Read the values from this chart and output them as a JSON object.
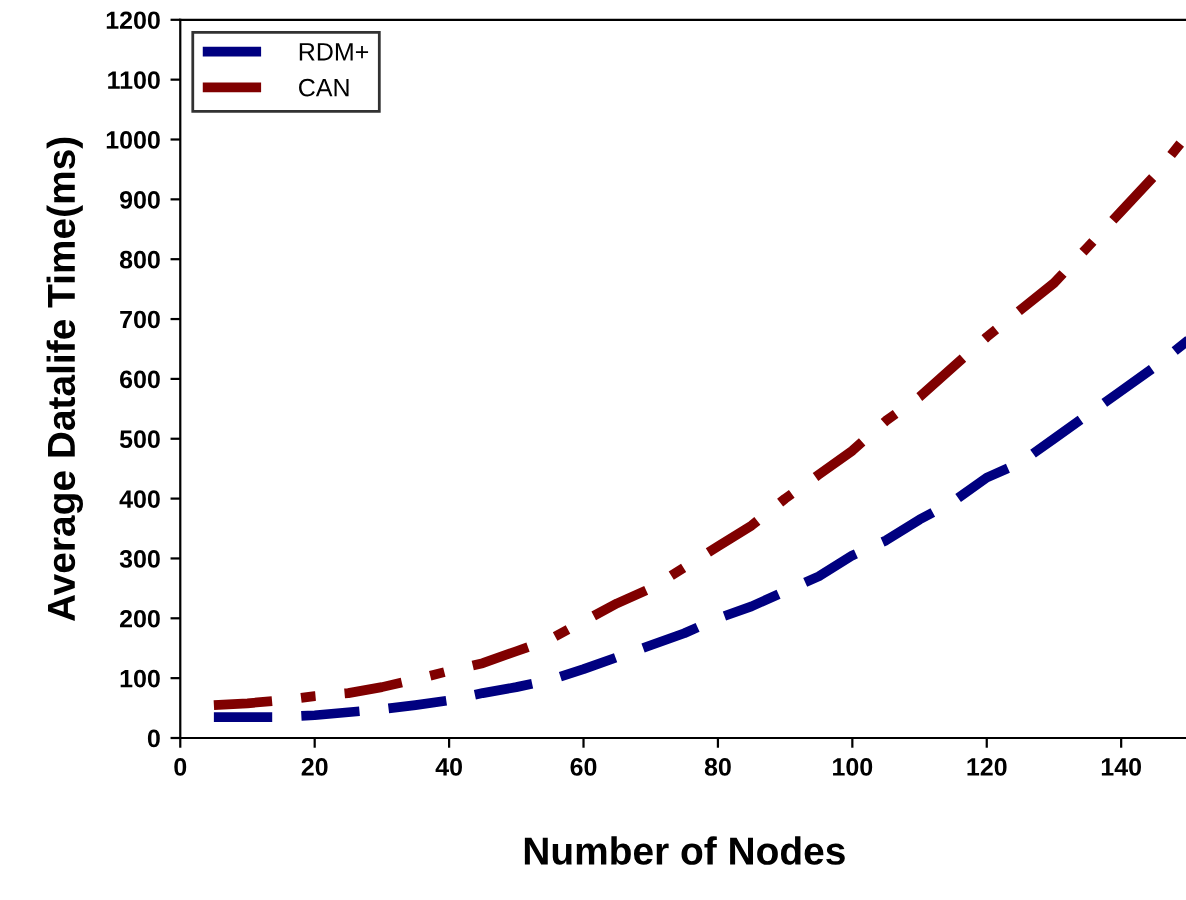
{
  "chart_data": {
    "type": "line",
    "xlabel": "Number of Nodes",
    "ylabel": "Average Datalife Time(ms)",
    "x": [
      5,
      10,
      15,
      20,
      25,
      30,
      35,
      40,
      45,
      50,
      55,
      60,
      65,
      70,
      75,
      80,
      85,
      90,
      95,
      100,
      105,
      110,
      115,
      120,
      125,
      130,
      135,
      140,
      145,
      150
    ],
    "series": [
      {
        "name": "RDM+",
        "color": "#000080",
        "line_style": "dashed",
        "values": [
          35,
          35,
          35,
          38,
          43,
          48,
          55,
          63,
          75,
          85,
          97,
          115,
          135,
          155,
          175,
          200,
          220,
          245,
          270,
          305,
          330,
          365,
          395,
          435,
          460,
          500,
          540,
          580,
          620,
          665
        ]
      },
      {
        "name": "CAN",
        "color": "#800000",
        "line_style": "dashdot",
        "values": [
          55,
          58,
          63,
          70,
          75,
          85,
          98,
          112,
          125,
          145,
          165,
          195,
          225,
          250,
          285,
          320,
          355,
          400,
          440,
          480,
          530,
          570,
          620,
          670,
          715,
          760,
          820,
          880,
          940,
          1010
        ]
      }
    ],
    "xlim": [
      0,
      150
    ],
    "xticks": [
      0,
      20,
      40,
      60,
      80,
      100,
      120,
      140
    ],
    "ylim": [
      0,
      1200
    ],
    "yticks": [
      0,
      100,
      200,
      300,
      400,
      500,
      600,
      700,
      800,
      900,
      1000,
      1100,
      1200
    ],
    "grid": false,
    "legend": "top left",
    "marker": "none"
  }
}
